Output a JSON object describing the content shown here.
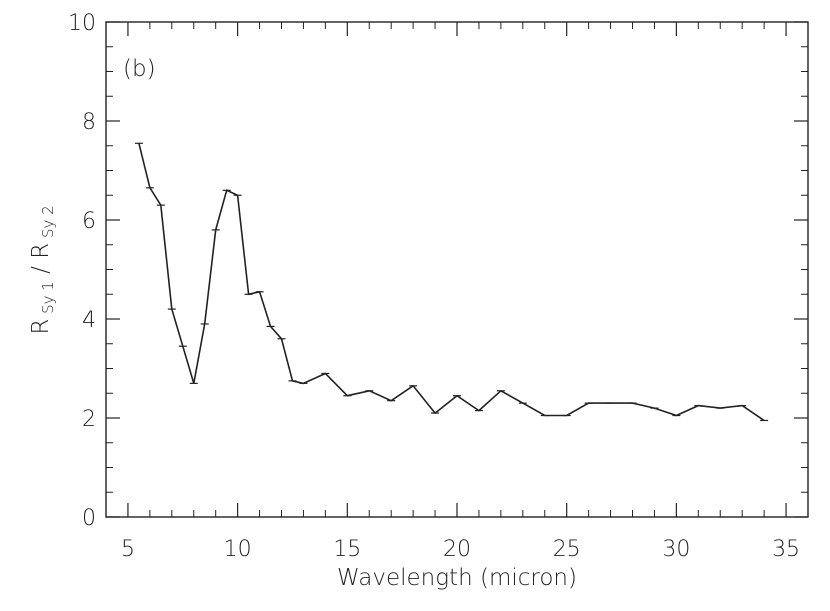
{
  "chart_data": {
    "type": "line",
    "annotation": "(b)",
    "xlabel": "Wavelength (micron)",
    "ylabel": {
      "parts": [
        {
          "text": "R",
          "sub": false
        },
        {
          "text": "Sy 1",
          "sub": true
        },
        {
          "text": "/",
          "sub": false
        },
        {
          "text": "R",
          "sub": false
        },
        {
          "text": "Sy 2",
          "sub": true
        }
      ]
    },
    "xlim": [
      4,
      36
    ],
    "ylim": [
      0,
      10
    ],
    "xticks": [
      5,
      10,
      15,
      20,
      25,
      30,
      35
    ],
    "yticks": [
      0,
      2,
      4,
      6,
      8,
      10
    ],
    "xtick_labels": [
      "5",
      "10",
      "15",
      "20",
      "25",
      "30",
      "35"
    ],
    "ytick_labels": [
      "0",
      "2",
      "4",
      "6",
      "8",
      "10"
    ],
    "grid": false,
    "series": [
      {
        "x": [
          5.5,
          6.0,
          6.5,
          7.0,
          7.5,
          8.0,
          8.5,
          9.0,
          9.5,
          10.0,
          10.5,
          11.0,
          11.5,
          12.0,
          12.5,
          13.0,
          14.0,
          15.0,
          16.0,
          17.0,
          18.0,
          19.0,
          20.0,
          21.0,
          22.0,
          23.0,
          24.0,
          25.0,
          26.0,
          27.0,
          28.0,
          29.0,
          30.0,
          31.0,
          32.0,
          33.0,
          34.0
        ],
        "y": [
          7.55,
          6.65,
          6.3,
          4.2,
          3.45,
          2.7,
          3.9,
          5.8,
          6.6,
          6.5,
          4.5,
          4.55,
          3.85,
          3.6,
          2.75,
          2.7,
          2.9,
          2.45,
          2.55,
          2.35,
          2.65,
          2.1,
          2.45,
          2.15,
          2.55,
          2.3,
          2.05,
          2.05,
          2.3,
          2.3,
          2.3,
          2.2,
          2.05,
          2.25,
          2.2,
          2.25,
          1.95
        ]
      }
    ]
  }
}
